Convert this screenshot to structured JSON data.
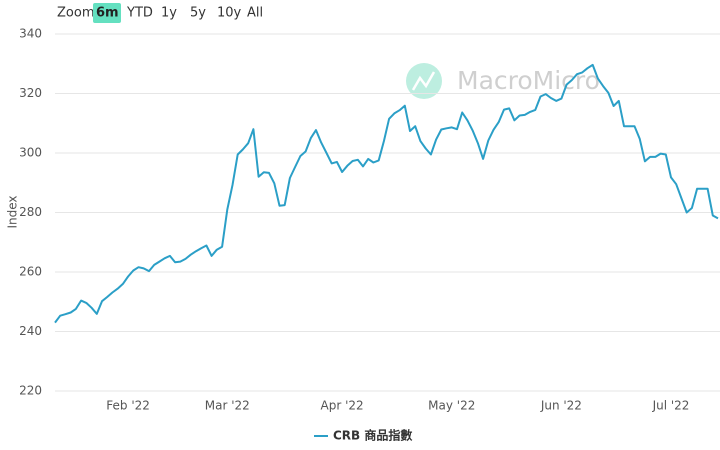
{
  "range_selector": {
    "label": "Zoom",
    "buttons": [
      "6m",
      "YTD",
      "1y",
      "5y",
      "10y",
      "All"
    ],
    "selected": 0
  },
  "watermark": "MacroMicro",
  "chart_data": {
    "type": "line",
    "y_label": "Index",
    "grid": true,
    "ylim": [
      220,
      340
    ],
    "yticks": [
      220,
      240,
      260,
      280,
      300,
      320,
      340
    ],
    "categories": [
      null,
      null,
      null,
      null,
      null,
      null,
      null,
      null,
      null,
      null,
      null,
      null,
      null,
      null,
      "Feb '22",
      null,
      null,
      null,
      null,
      null,
      null,
      null,
      null,
      null,
      null,
      null,
      null,
      null,
      null,
      null,
      null,
      null,
      null,
      "Mar '22",
      null,
      null,
      null,
      null,
      null,
      null,
      null,
      null,
      null,
      null,
      null,
      null,
      null,
      null,
      null,
      null,
      null,
      null,
      null,
      null,
      null,
      "Apr '22",
      null,
      null,
      null,
      null,
      null,
      null,
      null,
      null,
      null,
      null,
      null,
      null,
      null,
      null,
      null,
      null,
      null,
      null,
      null,
      null,
      "May '22",
      null,
      null,
      null,
      null,
      null,
      null,
      null,
      null,
      null,
      null,
      null,
      null,
      null,
      null,
      null,
      null,
      null,
      null,
      null,
      null,
      "Jun '22",
      null,
      null,
      null,
      null,
      null,
      null,
      null,
      null,
      null,
      null,
      null,
      null,
      null,
      null,
      null,
      null,
      null,
      null,
      null,
      null,
      "Jul '22",
      null,
      null,
      null,
      null,
      null,
      null,
      null,
      null,
      null
    ],
    "series": [
      {
        "name": "CRB 商品指數",
        "color": "#2b9fc7",
        "values": [
          243,
          245.3,
          245.8,
          246.4,
          247.6,
          250.4,
          249.6,
          248,
          245.9,
          250.2,
          251.6,
          253.1,
          254.4,
          256,
          258.5,
          260.5,
          261.6,
          261.2,
          260.3,
          262.4,
          263.5,
          264.6,
          265.4,
          263.3,
          263.5,
          264.4,
          265.8,
          267,
          268,
          268.9,
          265.4,
          267.5,
          268.5,
          281,
          289.2,
          299.5,
          301.2,
          303.3,
          308,
          292,
          293.5,
          293.3,
          289.8,
          282.3,
          282.5,
          291.6,
          295.3,
          299,
          300.5,
          305,
          307.7,
          303.5,
          300,
          296.5,
          297,
          293.6,
          295.7,
          297.3,
          297.7,
          295.5,
          298,
          296.8,
          297.5,
          304,
          311.5,
          313.3,
          314.4,
          315.9,
          307.4,
          309,
          304,
          301.5,
          299.5,
          304.5,
          307.9,
          308.3,
          308.6,
          308,
          313.6,
          311,
          307.6,
          303.3,
          298,
          304.2,
          307.8,
          310.4,
          314.6,
          315,
          311,
          312.6,
          312.8,
          313.8,
          314.5,
          319,
          319.8,
          318.5,
          317.5,
          318.3,
          323,
          324.5,
          326.5,
          327.1,
          328.5,
          329.6,
          325,
          322.5,
          320.2,
          315.8,
          317.5,
          309,
          309,
          309,
          304.8,
          297.2,
          298.7,
          298.7,
          299.8,
          299.5,
          291.8,
          289.5,
          284.7,
          280,
          281.5,
          288,
          288,
          288,
          279,
          278
        ]
      }
    ]
  }
}
